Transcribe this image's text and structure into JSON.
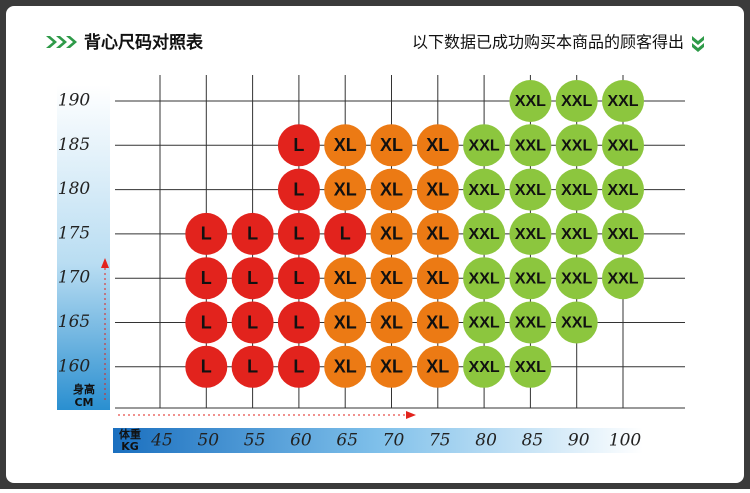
{
  "header": {
    "title": "背心尺码对照表",
    "note": "以下数据已成功购买本商品的顾客得出"
  },
  "height_axis": {
    "unit_label": "身高",
    "unit": "CM",
    "heights": [
      190,
      185,
      180,
      175,
      170,
      165,
      160
    ]
  },
  "weight_axis": {
    "unit_label": "体重",
    "unit": "KG",
    "weights": [
      45,
      50,
      55,
      60,
      65,
      70,
      75,
      80,
      85,
      90,
      100
    ]
  },
  "colors": {
    "L": "#e2231d",
    "XL": "#ec7a14",
    "XXL": "#8cc63e"
  },
  "grid": [
    [
      null,
      null,
      null,
      null,
      null,
      null,
      null,
      null,
      "XXL",
      "XXL",
      "XXL"
    ],
    [
      null,
      null,
      null,
      "L",
      "XL",
      "XL",
      "XL",
      "XXL",
      "XXL",
      "XXL",
      "XXL"
    ],
    [
      null,
      null,
      null,
      "L",
      "XL",
      "XL",
      "XL",
      "XXL",
      "XXL",
      "XXL",
      "XXL"
    ],
    [
      null,
      "L",
      "L",
      "L",
      "L",
      "XL",
      "XL",
      "XXL",
      "XXL",
      "XXL",
      "XXL"
    ],
    [
      null,
      "L",
      "L",
      "L",
      "XL",
      "XL",
      "XL",
      "XXL",
      "XXL",
      "XXL",
      "XXL"
    ],
    [
      null,
      "L",
      "L",
      "L",
      "XL",
      "XL",
      "XL",
      "XXL",
      "XXL",
      "XXL",
      null
    ],
    [
      null,
      "L",
      "L",
      "L",
      "XL",
      "XL",
      "XL",
      "XXL",
      "XXL",
      null,
      null
    ]
  ]
}
